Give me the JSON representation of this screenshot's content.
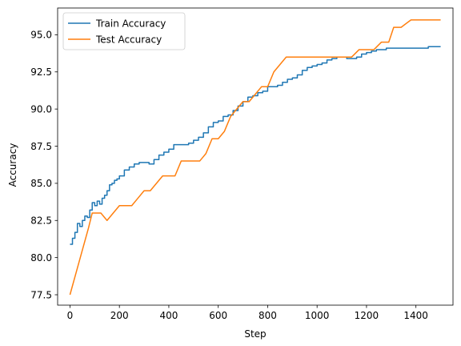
{
  "chart_data": {
    "type": "line",
    "title": "",
    "xlabel": "Step",
    "ylabel": "Accuracy",
    "xlim": [
      -50,
      1550
    ],
    "ylim": [
      76.8,
      96.8
    ],
    "xticks": [
      0,
      200,
      400,
      600,
      800,
      1000,
      1200,
      1400
    ],
    "yticks": [
      77.5,
      80.0,
      82.5,
      85.0,
      87.5,
      90.0,
      92.5,
      95.0
    ],
    "grid": false,
    "legend": "upper-left",
    "series": [
      {
        "name": "Train Accuracy",
        "color": "#1f77b4",
        "step": true,
        "x": [
          0,
          10,
          20,
          30,
          40,
          50,
          60,
          70,
          80,
          90,
          100,
          110,
          120,
          130,
          140,
          150,
          160,
          170,
          180,
          190,
          200,
          220,
          240,
          260,
          280,
          300,
          320,
          340,
          360,
          380,
          400,
          420,
          440,
          460,
          480,
          500,
          520,
          540,
          560,
          580,
          600,
          620,
          640,
          660,
          680,
          700,
          720,
          740,
          760,
          780,
          800,
          820,
          840,
          860,
          880,
          900,
          920,
          940,
          960,
          980,
          1000,
          1020,
          1040,
          1060,
          1080,
          1100,
          1120,
          1140,
          1160,
          1180,
          1200,
          1220,
          1240,
          1260,
          1280,
          1300,
          1350,
          1400,
          1450,
          1500
        ],
        "values": [
          80.9,
          81.3,
          81.7,
          82.3,
          82.1,
          82.5,
          82.8,
          82.7,
          83.2,
          83.7,
          83.5,
          83.8,
          83.6,
          84.0,
          84.2,
          84.5,
          84.9,
          85.0,
          85.2,
          85.3,
          85.5,
          85.9,
          86.1,
          86.3,
          86.4,
          86.4,
          86.3,
          86.6,
          86.9,
          87.1,
          87.3,
          87.6,
          87.6,
          87.6,
          87.7,
          87.9,
          88.1,
          88.4,
          88.8,
          89.1,
          89.2,
          89.5,
          89.6,
          89.9,
          90.2,
          90.5,
          90.8,
          90.9,
          91.1,
          91.2,
          91.5,
          91.5,
          91.6,
          91.8,
          92.0,
          92.1,
          92.3,
          92.6,
          92.8,
          92.9,
          93.0,
          93.1,
          93.3,
          93.4,
          93.5,
          93.5,
          93.4,
          93.4,
          93.5,
          93.7,
          93.8,
          93.9,
          94.0,
          94.0,
          94.1,
          94.1,
          94.1,
          94.1,
          94.2,
          94.2
        ]
      },
      {
        "name": "Test Accuracy",
        "color": "#ff7f0e",
        "step": false,
        "x": [
          0,
          25,
          50,
          75,
          90,
          100,
          125,
          150,
          175,
          200,
          225,
          250,
          275,
          300,
          325,
          350,
          375,
          400,
          425,
          450,
          475,
          500,
          525,
          550,
          575,
          600,
          625,
          650,
          675,
          700,
          725,
          750,
          775,
          800,
          825,
          850,
          875,
          900,
          1000,
          1050,
          1100,
          1140,
          1170,
          1200,
          1230,
          1260,
          1290,
          1310,
          1340,
          1380,
          1500
        ],
        "values": [
          77.5,
          79.0,
          80.5,
          82.0,
          83.0,
          83.0,
          83.0,
          82.5,
          83.0,
          83.5,
          83.5,
          83.5,
          84.0,
          84.5,
          84.5,
          85.0,
          85.5,
          85.5,
          85.5,
          86.5,
          86.5,
          86.5,
          86.5,
          87.0,
          88.0,
          88.0,
          88.5,
          89.5,
          90.0,
          90.5,
          90.5,
          91.0,
          91.5,
          91.5,
          92.5,
          93.0,
          93.5,
          93.5,
          93.5,
          93.5,
          93.5,
          93.5,
          94.0,
          94.0,
          94.0,
          94.5,
          94.5,
          95.5,
          95.5,
          96.0,
          96.0
        ]
      }
    ]
  }
}
